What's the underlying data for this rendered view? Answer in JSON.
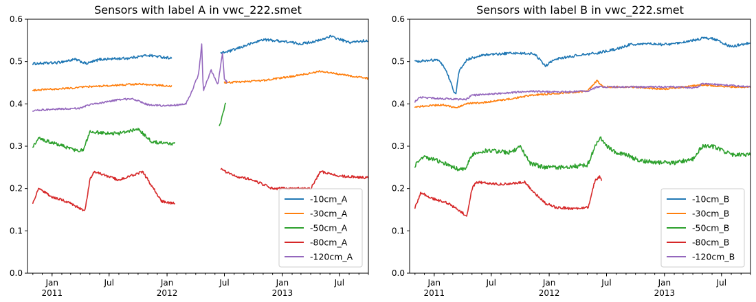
{
  "chart_data": [
    {
      "type": "line",
      "title": "Sensors with label A in vwc_222.smet",
      "xlabel": "",
      "ylabel": "",
      "x_range": [
        "2010-10-15",
        "2013-10-01"
      ],
      "ylim": [
        0,
        0.6
      ],
      "yticks": [
        "0.0",
        "0.1",
        "0.2",
        "0.3",
        "0.4",
        "0.5",
        "0.6"
      ],
      "xticks": [
        {
          "date": "2011-01-01",
          "label": "Jan",
          "sublabel": "2011"
        },
        {
          "date": "2011-07-01",
          "label": "Jul",
          "sublabel": ""
        },
        {
          "date": "2012-01-01",
          "label": "Jan",
          "sublabel": "2012"
        },
        {
          "date": "2012-07-01",
          "label": "Jul",
          "sublabel": ""
        },
        {
          "date": "2013-01-01",
          "label": "Jan",
          "sublabel": "2013"
        },
        {
          "date": "2013-07-01",
          "label": "Jul",
          "sublabel": ""
        }
      ],
      "grid": false,
      "legend_position": "lower-right",
      "series": [
        {
          "name": "-10cm_A",
          "color": "#1f77b4",
          "noise": 0.003,
          "segments": [
            [
              [
                "2010-11-01",
                0.495
              ],
              [
                "2011-01-15",
                0.497
              ],
              [
                "2011-03-15",
                0.505
              ],
              [
                "2011-04-20",
                0.495
              ],
              [
                "2011-06-01",
                0.505
              ],
              [
                "2011-09-01",
                0.508
              ],
              [
                "2011-11-01",
                0.515
              ],
              [
                "2012-01-15",
                0.508
              ]
            ],
            [
              [
                "2012-06-20",
                0.52
              ],
              [
                "2012-07-20",
                0.525
              ],
              [
                "2012-09-15",
                0.54
              ],
              [
                "2012-11-01",
                0.552
              ],
              [
                "2013-01-01",
                0.548
              ],
              [
                "2013-03-01",
                0.542
              ],
              [
                "2013-05-01",
                0.55
              ],
              [
                "2013-06-01",
                0.56
              ],
              [
                "2013-08-01",
                0.545
              ],
              [
                "2013-10-01",
                0.55
              ]
            ]
          ]
        },
        {
          "name": "-30cm_A",
          "color": "#ff7f0e",
          "noise": 0.002,
          "segments": [
            [
              [
                "2010-11-01",
                0.432
              ],
              [
                "2011-03-15",
                0.438
              ],
              [
                "2011-04-10",
                0.44
              ],
              [
                "2011-07-01",
                0.443
              ],
              [
                "2011-10-01",
                0.447
              ],
              [
                "2012-01-15",
                0.442
              ]
            ],
            [
              [
                "2012-07-01",
                0.45
              ],
              [
                "2012-11-01",
                0.455
              ],
              [
                "2013-02-01",
                0.465
              ],
              [
                "2013-05-01",
                0.477
              ],
              [
                "2013-07-01",
                0.47
              ],
              [
                "2013-10-01",
                0.46
              ]
            ]
          ]
        },
        {
          "name": "-50cm_A",
          "color": "#2ca02c",
          "noise": 0.004,
          "segments": [
            [
              [
                "2010-11-01",
                0.3
              ],
              [
                "2010-11-20",
                0.318
              ],
              [
                "2011-01-15",
                0.305
              ],
              [
                "2011-03-20",
                0.29
              ],
              [
                "2011-04-10",
                0.29
              ],
              [
                "2011-05-01",
                0.335
              ],
              [
                "2011-06-15",
                0.33
              ],
              [
                "2011-08-01",
                0.33
              ],
              [
                "2011-10-01",
                0.34
              ],
              [
                "2011-11-15",
                0.31
              ],
              [
                "2012-01-25",
                0.305
              ]
            ],
            [
              [
                "2012-06-15",
                0.345
              ],
              [
                "2012-07-01",
                0.39
              ],
              [
                "2012-07-05",
                0.403
              ]
            ]
          ]
        },
        {
          "name": "-80cm_A",
          "color": "#d62728",
          "noise": 0.003,
          "segments": [
            [
              [
                "2010-11-01",
                0.165
              ],
              [
                "2010-11-20",
                0.2
              ],
              [
                "2011-01-01",
                0.18
              ],
              [
                "2011-02-15",
                0.17
              ],
              [
                "2011-04-15",
                0.147
              ],
              [
                "2011-05-01",
                0.22
              ],
              [
                "2011-05-15",
                0.24
              ],
              [
                "2011-08-01",
                0.22
              ],
              [
                "2011-10-15",
                0.24
              ],
              [
                "2011-11-15",
                0.205
              ],
              [
                "2011-12-15",
                0.17
              ],
              [
                "2012-01-25",
                0.165
              ]
            ],
            [
              [
                "2012-06-20",
                0.245
              ],
              [
                "2012-08-01",
                0.23
              ],
              [
                "2012-10-01",
                0.22
              ],
              [
                "2012-12-01",
                0.2
              ],
              [
                "2013-02-01",
                0.2
              ],
              [
                "2013-04-01",
                0.2
              ],
              [
                "2013-05-01",
                0.24
              ],
              [
                "2013-07-01",
                0.23
              ],
              [
                "2013-10-01",
                0.225
              ]
            ]
          ]
        },
        {
          "name": "-120cm_A",
          "color": "#9467bd",
          "noise": 0.002,
          "segments": [
            [
              [
                "2010-11-01",
                0.384
              ],
              [
                "2011-01-01",
                0.387
              ],
              [
                "2011-04-01",
                0.39
              ],
              [
                "2011-05-01",
                0.398
              ],
              [
                "2011-08-01",
                0.41
              ],
              [
                "2011-09-15",
                0.412
              ],
              [
                "2011-11-01",
                0.398
              ],
              [
                "2012-01-01",
                0.395
              ],
              [
                "2012-03-01",
                0.4
              ],
              [
                "2012-03-20",
                0.43
              ],
              [
                "2012-04-10",
                0.47
              ],
              [
                "2012-04-20",
                0.54
              ],
              [
                "2012-04-25",
                0.43
              ],
              [
                "2012-05-20",
                0.48
              ],
              [
                "2012-06-10",
                0.445
              ],
              [
                "2012-06-25",
                0.52
              ],
              [
                "2012-07-01",
                0.46
              ],
              [
                "2012-07-10",
                0.45
              ]
            ]
          ]
        }
      ],
      "legend": [
        "-10cm_A",
        "-30cm_A",
        "-50cm_A",
        "-80cm_A",
        "-120cm_A"
      ]
    },
    {
      "type": "line",
      "title": "Sensors with label B in vwc_222.smet",
      "xlabel": "",
      "ylabel": "",
      "x_range": [
        "2010-10-15",
        "2013-10-01"
      ],
      "ylim": [
        0,
        0.6
      ],
      "yticks": [
        "0.0",
        "0.1",
        "0.2",
        "0.3",
        "0.4",
        "0.5",
        "0.6"
      ],
      "xticks": [
        {
          "date": "2011-01-01",
          "label": "Jan",
          "sublabel": "2011"
        },
        {
          "date": "2011-07-01",
          "label": "Jul",
          "sublabel": ""
        },
        {
          "date": "2012-01-01",
          "label": "Jan",
          "sublabel": "2012"
        },
        {
          "date": "2012-07-01",
          "label": "Jul",
          "sublabel": ""
        },
        {
          "date": "2013-01-01",
          "label": "Jan",
          "sublabel": "2013"
        },
        {
          "date": "2013-07-01",
          "label": "Jul",
          "sublabel": ""
        }
      ],
      "grid": false,
      "legend_position": "lower-right",
      "series": [
        {
          "name": "-10cm_B",
          "color": "#1f77b4",
          "noise": 0.003,
          "segments": [
            [
              [
                "2010-11-01",
                0.5
              ],
              [
                "2011-01-15",
                0.505
              ],
              [
                "2011-02-10",
                0.475
              ],
              [
                "2011-03-10",
                0.42
              ],
              [
                "2011-03-20",
                0.475
              ],
              [
                "2011-04-15",
                0.505
              ],
              [
                "2011-06-01",
                0.515
              ],
              [
                "2011-09-01",
                0.52
              ],
              [
                "2011-11-15",
                0.518
              ],
              [
                "2011-12-20",
                0.49
              ],
              [
                "2012-01-20",
                0.505
              ],
              [
                "2012-04-01",
                0.515
              ],
              [
                "2012-06-01",
                0.52
              ],
              [
                "2012-08-01",
                0.53
              ],
              [
                "2012-09-15",
                0.54
              ],
              [
                "2012-11-01",
                0.542
              ],
              [
                "2013-01-01",
                0.54
              ],
              [
                "2013-03-01",
                0.545
              ],
              [
                "2013-05-01",
                0.555
              ],
              [
                "2013-06-01",
                0.555
              ],
              [
                "2013-08-01",
                0.535
              ],
              [
                "2013-10-01",
                0.545
              ]
            ]
          ]
        },
        {
          "name": "-30cm_B",
          "color": "#ff7f0e",
          "noise": 0.002,
          "segments": [
            [
              [
                "2010-11-01",
                0.393
              ],
              [
                "2011-02-01",
                0.398
              ],
              [
                "2011-03-10",
                0.39
              ],
              [
                "2011-04-10",
                0.4
              ],
              [
                "2011-07-01",
                0.405
              ],
              [
                "2011-09-01",
                0.412
              ],
              [
                "2011-11-01",
                0.42
              ],
              [
                "2012-02-01",
                0.425
              ],
              [
                "2012-05-01",
                0.43
              ],
              [
                "2012-06-01",
                0.455
              ],
              [
                "2012-06-20",
                0.44
              ],
              [
                "2012-09-15",
                0.44
              ],
              [
                "2013-01-01",
                0.435
              ],
              [
                "2013-05-01",
                0.445
              ],
              [
                "2013-08-01",
                0.44
              ],
              [
                "2013-10-01",
                0.44
              ]
            ]
          ]
        },
        {
          "name": "-50cm_B",
          "color": "#2ca02c",
          "noise": 0.005,
          "segments": [
            [
              [
                "2010-11-01",
                0.255
              ],
              [
                "2010-11-20",
                0.275
              ],
              [
                "2011-01-15",
                0.265
              ],
              [
                "2011-03-20",
                0.245
              ],
              [
                "2011-04-10",
                0.245
              ],
              [
                "2011-05-01",
                0.28
              ],
              [
                "2011-06-15",
                0.29
              ],
              [
                "2011-09-01",
                0.285
              ],
              [
                "2011-10-01",
                0.3
              ],
              [
                "2011-11-01",
                0.26
              ],
              [
                "2011-12-15",
                0.25
              ],
              [
                "2012-02-01",
                0.25
              ],
              [
                "2012-05-01",
                0.255
              ],
              [
                "2012-06-01",
                0.31
              ],
              [
                "2012-06-10",
                0.32
              ],
              [
                "2012-07-01",
                0.3
              ],
              [
                "2012-08-01",
                0.285
              ],
              [
                "2012-09-01",
                0.28
              ],
              [
                "2012-10-15",
                0.265
              ],
              [
                "2013-02-01",
                0.26
              ],
              [
                "2013-04-01",
                0.27
              ],
              [
                "2013-05-01",
                0.3
              ],
              [
                "2013-06-01",
                0.3
              ],
              [
                "2013-08-01",
                0.28
              ],
              [
                "2013-10-01",
                0.28
              ]
            ]
          ]
        },
        {
          "name": "-80cm_B",
          "color": "#d62728",
          "noise": 0.003,
          "segments": [
            [
              [
                "2010-11-01",
                0.155
              ],
              [
                "2010-11-20",
                0.19
              ],
              [
                "2011-01-01",
                0.175
              ],
              [
                "2011-02-15",
                0.165
              ],
              [
                "2011-04-15",
                0.135
              ],
              [
                "2011-05-01",
                0.2
              ],
              [
                "2011-05-15",
                0.215
              ],
              [
                "2011-08-01",
                0.21
              ],
              [
                "2011-10-15",
                0.215
              ],
              [
                "2011-11-15",
                0.19
              ],
              [
                "2011-12-20",
                0.165
              ],
              [
                "2012-01-25",
                0.155
              ],
              [
                "2012-04-01",
                0.152
              ],
              [
                "2012-05-05",
                0.156
              ],
              [
                "2012-05-25",
                0.218
              ],
              [
                "2012-06-10",
                0.228
              ],
              [
                "2012-06-15",
                0.22
              ]
            ]
          ]
        },
        {
          "name": "-120cm_B",
          "color": "#9467bd",
          "noise": 0.002,
          "segments": [
            [
              [
                "2010-11-01",
                0.405
              ],
              [
                "2010-11-15",
                0.415
              ],
              [
                "2011-04-10",
                0.41
              ],
              [
                "2011-05-01",
                0.42
              ],
              [
                "2011-08-01",
                0.425
              ],
              [
                "2011-11-01",
                0.43
              ],
              [
                "2012-02-01",
                0.428
              ],
              [
                "2012-05-01",
                0.43
              ],
              [
                "2012-06-01",
                0.44
              ],
              [
                "2012-11-01",
                0.44
              ],
              [
                "2013-02-01",
                0.44
              ],
              [
                "2013-04-15",
                0.438
              ],
              [
                "2013-05-01",
                0.448
              ],
              [
                "2013-07-01",
                0.445
              ],
              [
                "2013-10-01",
                0.44
              ]
            ]
          ]
        }
      ],
      "legend": [
        "-10cm_B",
        "-30cm_B",
        "-50cm_B",
        "-80cm_B",
        "-120cm_B"
      ]
    }
  ]
}
